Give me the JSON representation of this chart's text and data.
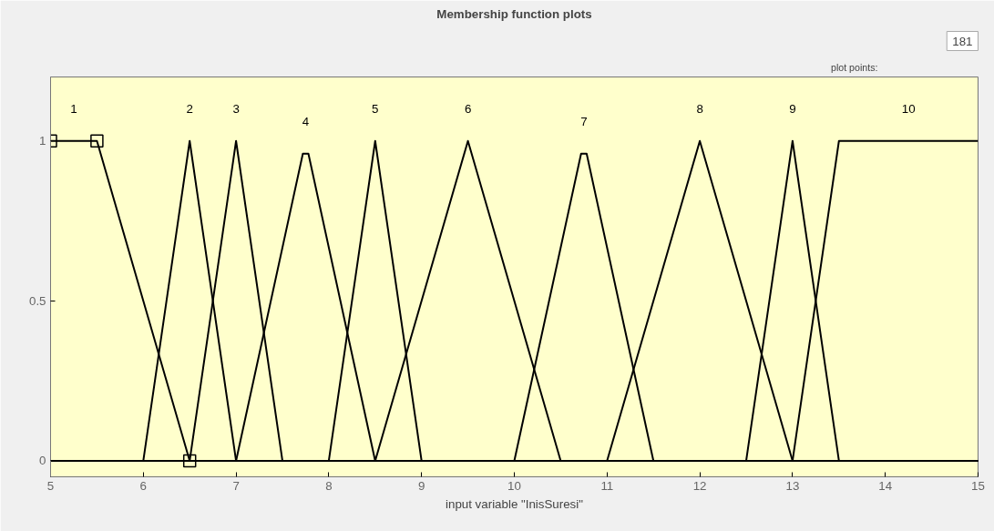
{
  "chart_data": {
    "type": "line",
    "title": "Membership function plots",
    "xlabel": "input variable \"InisSuresi\"",
    "xlim": [
      5,
      15
    ],
    "ylim": [
      -0.05,
      1.2
    ],
    "xticks": [
      5,
      6,
      7,
      8,
      9,
      10,
      11,
      12,
      13,
      14,
      15
    ],
    "yticks": [
      0,
      0.5,
      1
    ],
    "grid": false,
    "marker": "none",
    "line_style": "solid",
    "series": [
      {
        "name": "1",
        "color": "#000000",
        "marker": "square",
        "x": [
          5,
          5.5,
          6.5
        ],
        "values": [
          1,
          1,
          0
        ]
      },
      {
        "name": "2",
        "color": "#000000",
        "x": [
          5,
          6,
          6.5,
          7,
          15
        ],
        "values": [
          0,
          0,
          1,
          0,
          0
        ]
      },
      {
        "name": "3",
        "color": "#000000",
        "x": [
          5,
          6.5,
          7,
          7.5,
          15
        ],
        "values": [
          0,
          0,
          1,
          0,
          0
        ]
      },
      {
        "name": "4",
        "color": "#000000",
        "x": [
          5,
          7,
          7.72,
          7.78,
          8.5,
          15
        ],
        "values": [
          0,
          0,
          0.96,
          0.96,
          0,
          0
        ]
      },
      {
        "name": "5",
        "color": "#000000",
        "x": [
          5,
          8,
          8.5,
          9,
          15
        ],
        "values": [
          0,
          0,
          1,
          0,
          0
        ]
      },
      {
        "name": "6",
        "color": "#000000",
        "x": [
          5,
          8.5,
          9.5,
          10.5,
          15
        ],
        "values": [
          0,
          0,
          1,
          0,
          0
        ]
      },
      {
        "name": "7",
        "color": "#000000",
        "x": [
          5,
          10,
          10.72,
          10.78,
          11.5,
          15
        ],
        "values": [
          0,
          0,
          0.96,
          0.96,
          0,
          0
        ]
      },
      {
        "name": "8",
        "color": "#000000",
        "x": [
          5,
          11,
          12,
          13,
          15
        ],
        "values": [
          0,
          0,
          1,
          0,
          0
        ]
      },
      {
        "name": "9",
        "color": "#000000",
        "x": [
          5,
          12.5,
          13,
          13.5,
          15
        ],
        "values": [
          0,
          0,
          1,
          0,
          0
        ]
      },
      {
        "name": "10",
        "color": "#000000",
        "x": [
          5,
          13,
          13.5,
          15
        ],
        "values": [
          0,
          0,
          1,
          1
        ]
      }
    ],
    "annotations": [
      "plot points:",
      "181"
    ]
  }
}
